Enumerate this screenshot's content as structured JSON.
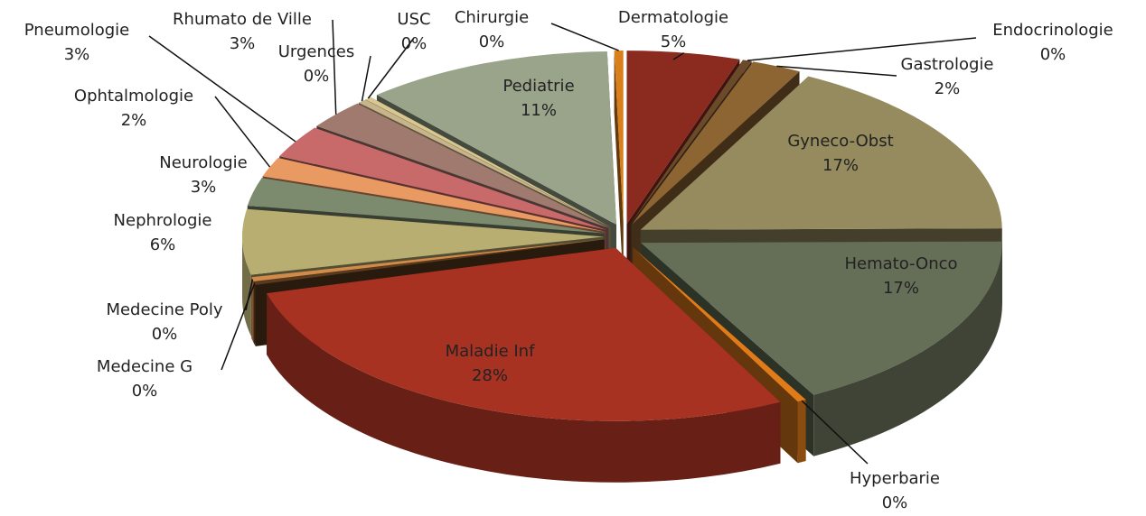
{
  "chart_data": {
    "type": "pie3d",
    "categories": [
      "Dermatologie",
      "Endocrinologie",
      "Gastrologie",
      "Gyneco-Obst",
      "Hemato-Onco",
      "Hyperbarie",
      "Maladie Inf",
      "Medecine G",
      "Medecine Poly",
      "Nephrologie",
      "Neurologie",
      "Ophtalmologie",
      "Pneumologie",
      "Rhumato de Ville",
      "Urgences",
      "USC",
      "Pediatrie",
      "Chirurgie"
    ],
    "values": [
      5,
      0.4,
      2.2,
      17,
      17,
      0.4,
      28,
      0.3,
      0.4,
      6,
      2.6,
      1.8,
      3,
      2.7,
      0.4,
      0.3,
      11,
      0.4
    ],
    "value_labels": [
      "5%",
      "0%",
      "2%",
      "17%",
      "17%",
      "0%",
      "28%",
      "0%",
      "0%",
      "6%",
      "3%",
      "2%",
      "3%",
      "3%",
      "0%",
      "0%",
      "11%",
      "0%"
    ],
    "colors": [
      "#8b2a1e",
      "#6b4a2a",
      "#8c6533",
      "#958b5e",
      "#656e57",
      "#e07b1a",
      "#a83222",
      "#5a3a1e",
      "#d08a4a",
      "#b8ae72",
      "#7c8a6e",
      "#e89a62",
      "#c96a6a",
      "#a07a6e",
      "#c8b48a",
      "#d8c890",
      "#9aa48a",
      "#d9801c"
    ]
  }
}
